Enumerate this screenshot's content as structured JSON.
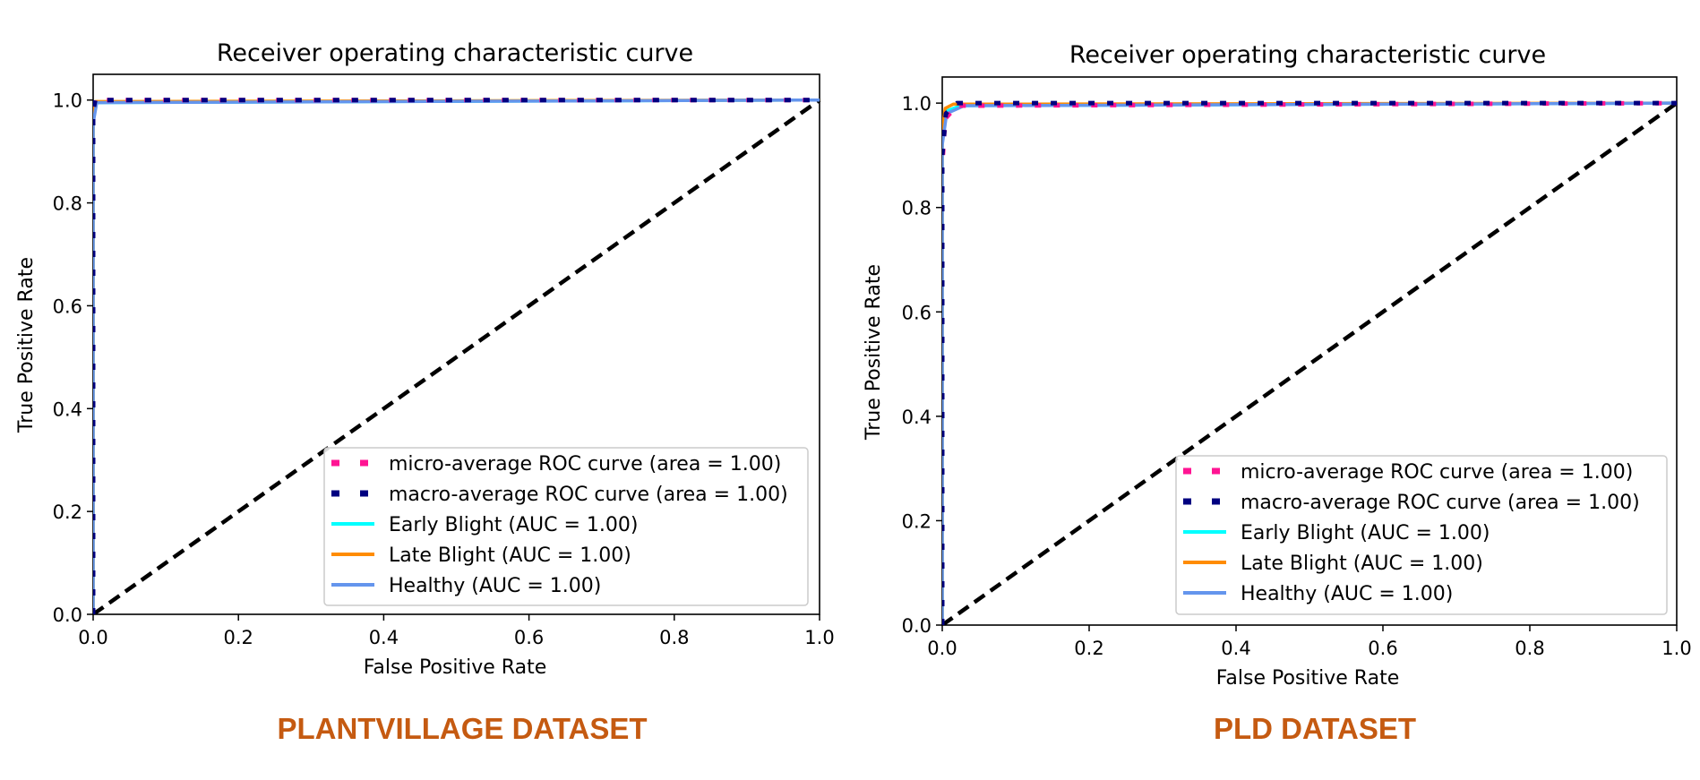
{
  "chart_data": [
    {
      "type": "line",
      "title": "Receiver operating characteristic curve",
      "xlabel": "False Positive Rate",
      "ylabel": "True Positive Rate",
      "xlim": [
        0.0,
        1.0
      ],
      "ylim": [
        0.0,
        1.05
      ],
      "xticks": [
        "0.0",
        "0.2",
        "0.4",
        "0.6",
        "0.8",
        "1.0"
      ],
      "yticks": [
        "0.0",
        "0.2",
        "0.4",
        "0.6",
        "0.8",
        "1.0"
      ],
      "legend_position": "lower-right",
      "grid": false,
      "caption": "PLANTVILLAGE DATASET",
      "series": [
        {
          "name": "micro-average ROC curve (area = 1.00)",
          "color": "#ff1493",
          "style": "dotted",
          "x": [
            0.0,
            0.0,
            0.002,
            1.0
          ],
          "y": [
            0.0,
            0.97,
            1.0,
            1.0
          ]
        },
        {
          "name": "macro-average ROC curve (area = 1.00)",
          "color": "#000080",
          "style": "dotted",
          "x": [
            0.0,
            0.0,
            0.003,
            1.0
          ],
          "y": [
            0.0,
            0.98,
            1.0,
            1.0
          ]
        },
        {
          "name": "Early Blight (AUC = 1.00)",
          "color": "#00ffff",
          "style": "solid",
          "x": [
            0.0,
            0.0,
            0.004,
            1.0
          ],
          "y": [
            0.0,
            0.975,
            0.995,
            1.0
          ]
        },
        {
          "name": "Late Blight (AUC = 1.00)",
          "color": "#ff8c00",
          "style": "solid",
          "x": [
            0.0,
            0.0,
            0.003,
            1.0
          ],
          "y": [
            0.0,
            0.98,
            0.997,
            1.0
          ]
        },
        {
          "name": "Healthy (AUC = 1.00)",
          "color": "#6495ed",
          "style": "solid",
          "x": [
            0.0,
            0.0,
            0.005,
            1.0
          ],
          "y": [
            0.0,
            0.955,
            0.995,
            1.0
          ]
        }
      ],
      "reference_line": {
        "color": "#000000",
        "style": "dashed",
        "x": [
          0.0,
          1.0
        ],
        "y": [
          0.0,
          1.0
        ]
      }
    },
    {
      "type": "line",
      "title": "Receiver operating characteristic curve",
      "xlabel": "False Positive Rate",
      "ylabel": "True Positive Rate",
      "xlim": [
        0.0,
        1.0
      ],
      "ylim": [
        0.0,
        1.05
      ],
      "xticks": [
        "0.0",
        "0.2",
        "0.4",
        "0.6",
        "0.8",
        "1.0"
      ],
      "yticks": [
        "0.0",
        "0.2",
        "0.4",
        "0.6",
        "0.8",
        "1.0"
      ],
      "legend_position": "lower-right",
      "grid": false,
      "caption": "PLD DATASET",
      "series": [
        {
          "name": "micro-average ROC curve (area = 1.00)",
          "color": "#ff1493",
          "style": "dotted",
          "x": [
            0.0,
            0.0,
            0.004,
            0.02,
            1.0
          ],
          "y": [
            0.0,
            0.88,
            0.97,
            0.995,
            1.0
          ]
        },
        {
          "name": "macro-average ROC curve (area = 1.00)",
          "color": "#000080",
          "style": "dotted",
          "x": [
            0.0,
            0.0,
            0.005,
            0.02,
            1.0
          ],
          "y": [
            0.0,
            0.9,
            0.98,
            1.0,
            1.0
          ]
        },
        {
          "name": "Early Blight (AUC = 1.00)",
          "color": "#00ffff",
          "style": "solid",
          "x": [
            0.0,
            0.0,
            0.006,
            0.025,
            1.0
          ],
          "y": [
            0.0,
            0.93,
            0.985,
            0.995,
            1.0
          ]
        },
        {
          "name": "Late Blight (AUC = 1.00)",
          "color": "#ff8c00",
          "style": "solid",
          "x": [
            0.0,
            0.0,
            0.004,
            0.015,
            1.0
          ],
          "y": [
            0.0,
            0.95,
            0.99,
            0.998,
            1.0
          ]
        },
        {
          "name": "Healthy (AUC = 1.00)",
          "color": "#6495ed",
          "style": "solid",
          "x": [
            0.0,
            0.0,
            0.006,
            0.03,
            1.0
          ],
          "y": [
            0.0,
            0.92,
            0.98,
            0.995,
            1.0
          ]
        }
      ],
      "reference_line": {
        "color": "#000000",
        "style": "dashed",
        "x": [
          0.0,
          1.0
        ],
        "y": [
          0.0,
          1.0
        ]
      }
    }
  ]
}
